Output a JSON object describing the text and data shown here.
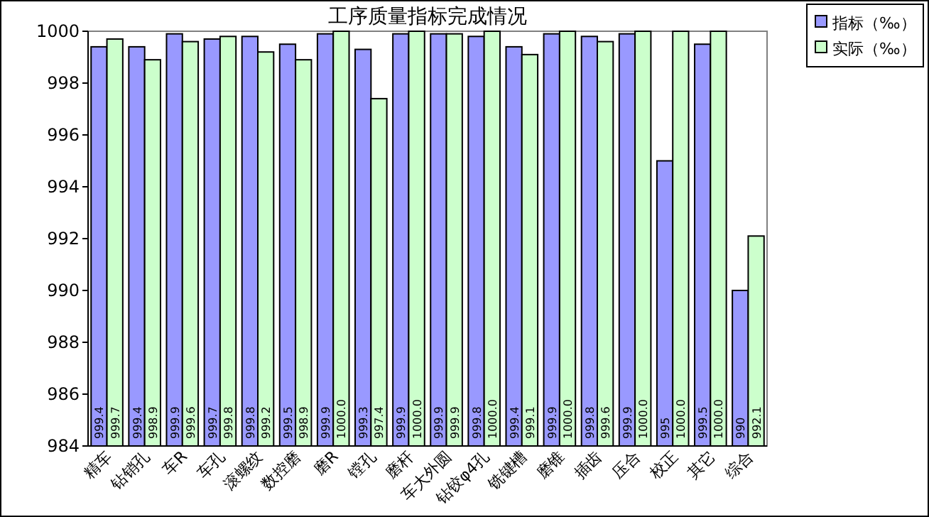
{
  "chart_data": {
    "type": "bar",
    "title": "工序质量指标完成情况",
    "categories": [
      "精车",
      "钻销孔",
      "车R",
      "车孔",
      "滚螺纹",
      "数控磨",
      "磨R",
      "镗孔",
      "磨杆",
      "车大外圆",
      "钻铰φ4孔",
      "铣键槽",
      "磨锥",
      "插齿",
      "压合",
      "校正",
      "其它",
      "综合"
    ],
    "series": [
      {
        "name": "指标（‰）",
        "color": "#9999ff",
        "values": [
          999.4,
          999.4,
          999.9,
          999.7,
          999.8,
          999.5,
          999.9,
          999.3,
          999.9,
          999.9,
          999.8,
          999.4,
          999.9,
          999.8,
          999.9,
          995,
          999.5,
          990
        ],
        "value_labels": [
          "999.4",
          "999.4",
          "999.9",
          "999.7",
          "999.8",
          "999.5",
          "999.9",
          "999.3",
          "999.9",
          "999.9",
          "999.8",
          "999.4",
          "999.9",
          "999.8",
          "999.9",
          "995",
          "999.5",
          "990"
        ]
      },
      {
        "name": "实际（‰）",
        "color": "#ccffcc",
        "values": [
          999.7,
          998.9,
          999.6,
          999.8,
          999.2,
          998.9,
          1000.0,
          997.4,
          1000.0,
          999.9,
          1000.0,
          999.1,
          1000.0,
          999.6,
          1000.0,
          1000.0,
          1000.0,
          992.1
        ],
        "value_labels": [
          "999.7",
          "998.9",
          "999.6",
          "999.8",
          "999.2",
          "998.9",
          "1000.0",
          "997.4",
          "1000.0",
          "999.9",
          "1000.0",
          "999.1",
          "1000.0",
          "999.6",
          "1000.0",
          "1000.0",
          "1000.0",
          "992.1"
        ]
      }
    ],
    "ylim": [
      984,
      1000
    ],
    "yticks": [
      984,
      986,
      988,
      990,
      992,
      994,
      996,
      998,
      1000
    ],
    "grid": false,
    "legend": "top right"
  }
}
